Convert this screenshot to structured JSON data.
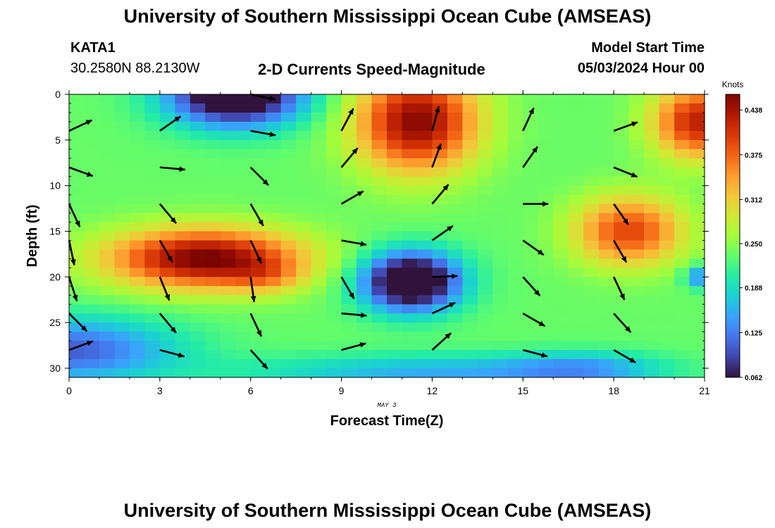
{
  "header": {
    "title": "University of Southern Mississippi Ocean Cube (AMSEAS)",
    "station": "KATA1",
    "coords": "30.2580N  88.2130W",
    "subtitle": "2-D Currents Speed-Magnitude",
    "model_label": "Model Start Time",
    "model_time": "05/03/2024 Hour 00"
  },
  "footer": {
    "title": "University of Southern Mississippi Ocean Cube (AMSEAS)"
  },
  "chart_data": {
    "type": "heatmap",
    "title": "2-D Currents Speed-Magnitude",
    "xlabel": "Forecast Time(Z)",
    "ylabel": "Depth (ft)",
    "date_label": "MAY 3",
    "xlim": [
      0,
      21
    ],
    "ylim": [
      31,
      0
    ],
    "x_ticks": [
      0,
      3,
      6,
      9,
      12,
      15,
      18,
      21
    ],
    "y_ticks": [
      0,
      5,
      10,
      15,
      20,
      25,
      30
    ],
    "colorbar": {
      "unit": "Knots",
      "ticks": [
        "0.438",
        "0.375",
        "0.312",
        "0.250",
        "0.188",
        "0.125",
        "0.062"
      ],
      "min": 0.062,
      "max": 0.46
    },
    "blobs": [
      {
        "x": 0,
        "y": 28,
        "sx": 3.5,
        "sy": 3.5,
        "v": -0.13
      },
      {
        "x": 5.5,
        "y": 0,
        "sx": 2.2,
        "sy": 3.5,
        "v": -0.24
      },
      {
        "x": 4.5,
        "y": 18,
        "sx": 3.2,
        "sy": 3.3,
        "v": 0.23
      },
      {
        "x": 6.5,
        "y": 20,
        "sx": 1.2,
        "sy": 1.8,
        "v": 0.05
      },
      {
        "x": 11.5,
        "y": 3,
        "sx": 2.0,
        "sy": 5.5,
        "v": 0.22
      },
      {
        "x": 11.3,
        "y": 20.5,
        "sx": 1.6,
        "sy": 3.2,
        "v": -0.25
      },
      {
        "x": 18.5,
        "y": 15,
        "sx": 1.8,
        "sy": 3.8,
        "v": 0.16
      },
      {
        "x": 20.8,
        "y": 3,
        "sx": 1.5,
        "sy": 4.0,
        "v": 0.19
      },
      {
        "x": 12,
        "y": 30.5,
        "sx": 6.0,
        "sy": 2.0,
        "v": -0.08
      },
      {
        "x": 17,
        "y": 30,
        "sx": 2.5,
        "sy": 1.8,
        "v": -0.07
      },
      {
        "x": 21,
        "y": 20,
        "sx": 0.6,
        "sy": 1.2,
        "v": -0.12
      }
    ],
    "arrows": [
      {
        "t": 0,
        "d": 4,
        "a": 25
      },
      {
        "t": 0,
        "d": 8,
        "a": -20
      },
      {
        "t": 0,
        "d": 12,
        "a": -65
      },
      {
        "t": 0,
        "d": 16,
        "a": -78
      },
      {
        "t": 0,
        "d": 20,
        "a": -72
      },
      {
        "t": 0,
        "d": 24,
        "a": -45
      },
      {
        "t": 0,
        "d": 28,
        "a": 20
      },
      {
        "t": 3,
        "d": 4,
        "a": 35
      },
      {
        "t": 3,
        "d": 8,
        "a": -5
      },
      {
        "t": 3,
        "d": 12,
        "a": -50
      },
      {
        "t": 3,
        "d": 16,
        "a": -60
      },
      {
        "t": 3,
        "d": 20,
        "a": -68
      },
      {
        "t": 3,
        "d": 24,
        "a": -50
      },
      {
        "t": 3,
        "d": 28,
        "a": -15
      },
      {
        "t": 6,
        "d": 0,
        "a": -12
      },
      {
        "t": 6,
        "d": 4,
        "a": -10
      },
      {
        "t": 6,
        "d": 8,
        "a": -45
      },
      {
        "t": 6,
        "d": 12,
        "a": -60
      },
      {
        "t": 6,
        "d": 16,
        "a": -65
      },
      {
        "t": 6,
        "d": 20,
        "a": -82
      },
      {
        "t": 6,
        "d": 24,
        "a": -65
      },
      {
        "t": 6,
        "d": 28,
        "a": -48
      },
      {
        "t": 9,
        "d": 4,
        "a": 62
      },
      {
        "t": 9,
        "d": 8,
        "a": 50
      },
      {
        "t": 9,
        "d": 12,
        "a": 30
      },
      {
        "t": 9,
        "d": 16,
        "a": -10
      },
      {
        "t": 9,
        "d": 20,
        "a": -60
      },
      {
        "t": 9,
        "d": 24,
        "a": -5
      },
      {
        "t": 9,
        "d": 28,
        "a": 15
      },
      {
        "t": 12,
        "d": 4,
        "a": 75
      },
      {
        "t": 12,
        "d": 8,
        "a": 70
      },
      {
        "t": 12,
        "d": 12,
        "a": 50
      },
      {
        "t": 12,
        "d": 16,
        "a": 35
      },
      {
        "t": 12,
        "d": 20,
        "a": 2
      },
      {
        "t": 12,
        "d": 24,
        "a": 25
      },
      {
        "t": 12,
        "d": 28,
        "a": 42
      },
      {
        "t": 15,
        "d": 4,
        "a": 65
      },
      {
        "t": 15,
        "d": 8,
        "a": 55
      },
      {
        "t": 15,
        "d": 12,
        "a": 0
      },
      {
        "t": 15,
        "d": 16,
        "a": -35
      },
      {
        "t": 15,
        "d": 20,
        "a": -48
      },
      {
        "t": 15,
        "d": 24,
        "a": -30
      },
      {
        "t": 15,
        "d": 28,
        "a": -15
      },
      {
        "t": 18,
        "d": 4,
        "a": 20
      },
      {
        "t": 18,
        "d": 8,
        "a": -22
      },
      {
        "t": 18,
        "d": 12,
        "a": -55
      },
      {
        "t": 18,
        "d": 16,
        "a": -60
      },
      {
        "t": 18,
        "d": 20,
        "a": -65
      },
      {
        "t": 18,
        "d": 24,
        "a": -48
      },
      {
        "t": 18,
        "d": 28,
        "a": -30
      }
    ],
    "colormap": [
      "#30123b",
      "#4145ab",
      "#4675ed",
      "#39a2fc",
      "#1bcfd4",
      "#24eca6",
      "#61fc6c",
      "#a4fc3b",
      "#d1e834",
      "#f3c63a",
      "#fe9b2d",
      "#f36315",
      "#d93806",
      "#b11901",
      "#7a0402"
    ]
  }
}
